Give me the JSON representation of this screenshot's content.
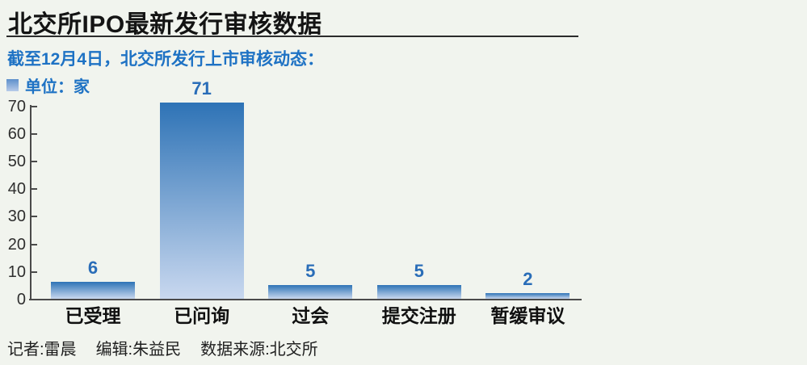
{
  "header": {
    "title": "北交所IPO最新发行审核数据",
    "subtitle": "截至12月4日，北交所发行上市审核动态："
  },
  "legend": {
    "label": "单位：家"
  },
  "chart_data": {
    "type": "bar",
    "categories": [
      "已受理",
      "已问询",
      "过会",
      "提交注册",
      "暂缓审议"
    ],
    "values": [
      6,
      71,
      5,
      5,
      2
    ],
    "title": "北交所IPO最新发行审核数据",
    "xlabel": "",
    "ylabel": "单位：家",
    "ylim": [
      0,
      70
    ],
    "yticks": [
      0,
      10,
      20,
      30,
      40,
      50,
      60,
      70
    ],
    "grid": false,
    "legend_position": "top-left",
    "value_labels_shown": true
  },
  "footer": {
    "credits": [
      "记者:雷晨",
      "编辑:朱益民",
      "数据来源:北交所"
    ]
  },
  "colors": {
    "background": "#f1f4ee",
    "accent_blue": "#1e72c4",
    "value_label_blue": "#2a6db8",
    "bar_gradient_top": "#2e73b6",
    "bar_gradient_bottom": "#c9d8ef",
    "axis": "#4a4a4a",
    "title_text": "#141414"
  }
}
